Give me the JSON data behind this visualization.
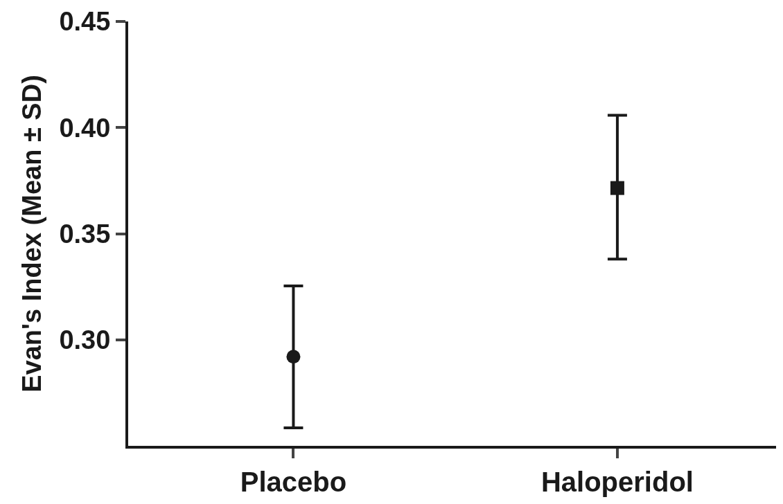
{
  "chart_data": {
    "type": "scatter",
    "ylabel": "Evan's Index (Mean ± SD)",
    "categories": [
      "Placebo",
      "Haloperidol"
    ],
    "series": [
      {
        "color": "#1a1a1a",
        "marker": "circle",
        "values": [
          0.292,
          null
        ],
        "errors": [
          [
            0.2585,
            0.3254
          ],
          null
        ]
      },
      {
        "color": "#1a1a1a",
        "marker": "square",
        "values": [
          null,
          0.3715
        ],
        "errors": [
          null,
          [
            0.338,
            0.4058
          ]
        ]
      }
    ],
    "ylim": [
      0.25,
      0.45
    ],
    "yticks": [
      {
        "value": 0.3,
        "label": "0.30"
      },
      {
        "value": 0.35,
        "label": "0.35"
      },
      {
        "value": 0.4,
        "label": "0.40"
      },
      {
        "value": 0.45,
        "label": "0.45"
      }
    ]
  }
}
